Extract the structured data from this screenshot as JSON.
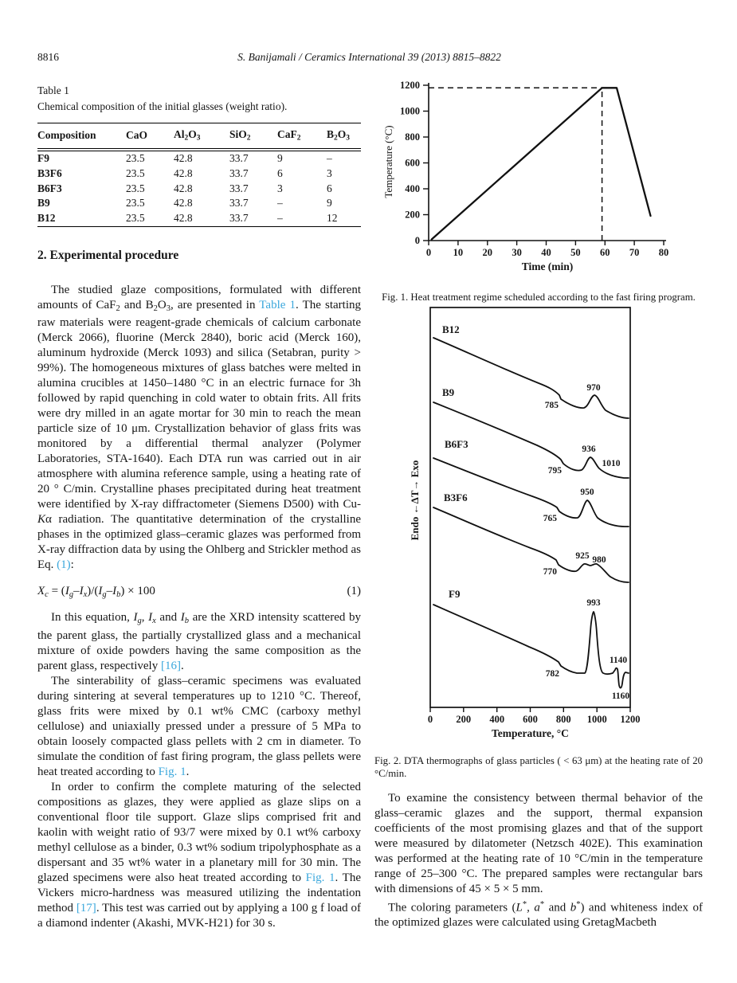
{
  "page": {
    "number": "8816",
    "running_head": "S. Banijamali / Ceramics International 39 (2013) 8815–8822"
  },
  "table1": {
    "label": "Table 1",
    "caption": "Chemical composition of the initial glasses (weight ratio).",
    "headers": [
      [
        {
          "t": "Composition"
        }
      ],
      [
        {
          "t": "CaO"
        }
      ],
      [
        {
          "t": "Al"
        },
        {
          "t": "2",
          "s": true
        },
        {
          "t": "O"
        },
        {
          "t": "3",
          "s": true
        }
      ],
      [
        {
          "t": "SiO"
        },
        {
          "t": "2",
          "s": true
        }
      ],
      [
        {
          "t": "CaF"
        },
        {
          "t": "2",
          "s": true
        }
      ],
      [
        {
          "t": "B"
        },
        {
          "t": "2",
          "s": true
        },
        {
          "t": "O"
        },
        {
          "t": "3",
          "s": true
        }
      ]
    ],
    "rows": [
      [
        "F9",
        "23.5",
        "42.8",
        "33.7",
        "9",
        "–"
      ],
      [
        "B3F6",
        "23.5",
        "42.8",
        "33.7",
        "6",
        "3"
      ],
      [
        "B6F3",
        "23.5",
        "42.8",
        "33.7",
        "3",
        "6"
      ],
      [
        "B9",
        "23.5",
        "42.8",
        "33.7",
        "–",
        "9"
      ],
      [
        "B12",
        "23.5",
        "42.8",
        "33.7",
        "–",
        "12"
      ]
    ]
  },
  "section": {
    "heading": "2. Experimental procedure"
  },
  "paragraphs": {
    "p1": [
      {
        "t": "The studied glaze compositions, formulated with different amounts of CaF"
      },
      {
        "t": "2",
        "s": true
      },
      {
        "t": " and B"
      },
      {
        "t": "2",
        "s": true
      },
      {
        "t": "O"
      },
      {
        "t": "3",
        "s": true
      },
      {
        "t": ", are presented in "
      },
      {
        "t": "Table 1",
        "l": true
      },
      {
        "t": ". The starting raw materials were reagent-grade chemicals of calcium carbonate (Merck 2066), fluorine (Merck 2840), boric acid (Merck 160), aluminum hydroxide (Merck 1093) and silica (Setabran, purity > 99%). The homogeneous mixtures of glass batches were melted in alumina crucibles at 1450–1480 °C in an electric furnace for 3h followed by rapid quenching in cold water to obtain frits. All frits were dry milled in an agate mortar for 30 min to reach the mean particle size of 10 μm. Crystallization behavior of glass frits was monitored by a differential thermal analyzer (Polymer Laboratories, STA-1640). Each DTA run was carried out in air atmosphere with alumina reference sample, using a heating rate of 20 ° C/min. Crystalline phases precipitated during heat treatment were identified by X-ray diffractometer (Siemens D500) with Cu-"
      },
      {
        "t": "K",
        "i": true
      },
      {
        "t": "α radiation. The quantitative determination of the crystalline phases in the optimized glass–ceramic glazes was performed from X-ray diffraction data by using the Ohlberg and Strickler method as Eq. "
      },
      {
        "t": "(1)",
        "l": true
      },
      {
        "t": ":"
      }
    ],
    "equation": {
      "body": [
        {
          "t": "X",
          "i": true
        },
        {
          "t": "c",
          "i": true,
          "s": true
        },
        {
          "t": " = ("
        },
        {
          "t": "I",
          "i": true
        },
        {
          "t": "g",
          "i": true,
          "s": true
        },
        {
          "t": "–"
        },
        {
          "t": "I",
          "i": true
        },
        {
          "t": "x",
          "i": true,
          "s": true
        },
        {
          "t": ")/("
        },
        {
          "t": "I",
          "i": true
        },
        {
          "t": "g",
          "i": true,
          "s": true
        },
        {
          "t": "–"
        },
        {
          "t": "I",
          "i": true
        },
        {
          "t": "b",
          "i": true,
          "s": true
        },
        {
          "t": ") × 100"
        }
      ],
      "number": "(1)"
    },
    "p2": [
      {
        "t": "In this equation, "
      },
      {
        "t": "I",
        "i": true
      },
      {
        "t": "g",
        "i": true,
        "s": true
      },
      {
        "t": ", "
      },
      {
        "t": "I",
        "i": true
      },
      {
        "t": "x",
        "i": true,
        "s": true
      },
      {
        "t": " and "
      },
      {
        "t": "I",
        "i": true
      },
      {
        "t": "b",
        "i": true,
        "s": true
      },
      {
        "t": " are the XRD intensity scattered by the parent glass, the partially crystallized glass and a mechanical mixture of oxide powders having the same composition as the parent glass, respectively "
      },
      {
        "t": "[16]",
        "l": true
      },
      {
        "t": "."
      }
    ],
    "p3": [
      {
        "t": "The sinterability of glass–ceramic specimens was evaluated during sintering at several temperatures up to 1210 °C. Thereof, glass frits were mixed by 0.1 wt% CMC (carboxy methyl cellulose) and uniaxially pressed under a pressure of 5 MPa to obtain loosely compacted glass pellets with 2 cm in diameter. To simulate the condition of fast firing program, the glass pellets were heat treated according to "
      },
      {
        "t": "Fig. 1",
        "l": true
      },
      {
        "t": "."
      }
    ],
    "p4": [
      {
        "t": "In order to confirm the complete maturing of the selected compositions as glazes, they were applied as glaze slips on a conventional floor tile support. Glaze slips comprised frit and kaolin with weight ratio of 93/7 were mixed by 0.1 wt% carboxy methyl cellulose as a binder, 0.3 wt% sodium tripolyphosphate as a dispersant and 35 wt% water in a planetary mill for 30 min. The glazed specimens were also heat treated according to "
      },
      {
        "t": "Fig. 1",
        "l": true
      },
      {
        "t": ". The Vickers micro-hardness was measured utilizing the indentation method "
      },
      {
        "t": "[17]",
        "l": true
      },
      {
        "t": ". This test was carried out by applying a 100 g f load of a diamond indenter (Akashi, MVK-H21) for 30 s."
      }
    ],
    "p5": [
      {
        "t": "To examine the consistency between thermal behavior of the glass–ceramic glazes and the support, thermal expansion coefficients of the most promising glazes and that of the support were measured by dilatometer (Netzsch 402E). This examination was performed at the heating rate of 10 °C/min in the temperature range of 25–300 °C. The prepared samples were rectangular bars with dimensions of 45 × 5 × 5 mm."
      }
    ],
    "p6": [
      {
        "t": "The coloring parameters ("
      },
      {
        "t": "L",
        "i": true
      },
      {
        "t": "*",
        "p": true
      },
      {
        "t": ", "
      },
      {
        "t": "a",
        "i": true
      },
      {
        "t": "*",
        "p": true
      },
      {
        "t": " and "
      },
      {
        "t": "b",
        "i": true
      },
      {
        "t": "*",
        "p": true
      },
      {
        "t": ") and whiteness index of the optimized glazes were calculated using GretagMacbeth"
      }
    ]
  },
  "fig1": {
    "caption": "Fig. 1. Heat treatment regime scheduled according to the fast firing program.",
    "xlabel": "Time (min)",
    "ylabel": "Temperature (°C)",
    "xticks": [
      "0",
      "10",
      "20",
      "30",
      "40",
      "50",
      "60",
      "70",
      "80"
    ],
    "yticks": [
      "0",
      "200",
      "400",
      "600",
      "800",
      "1000",
      "1200"
    ]
  },
  "fig2": {
    "caption": "Fig. 2. DTA thermographs of glass particles ( < 63 μm) at the heating rate of 20 °C/min.",
    "xlabel": "Temperature, °C",
    "ylabel": "Endo ←ΔT→ Exo",
    "xticks": [
      "0",
      "200",
      "400",
      "600",
      "800",
      "1000",
      "1200"
    ],
    "curves": [
      {
        "label": "B12",
        "annotations": [
          "785",
          "970"
        ]
      },
      {
        "label": "B9",
        "annotations": [
          "795",
          "936",
          "1010"
        ]
      },
      {
        "label": "B6F3",
        "annotations": [
          "765",
          "950"
        ]
      },
      {
        "label": "B3F6",
        "annotations": [
          "770",
          "925",
          "980"
        ]
      },
      {
        "label": "F9",
        "annotations": [
          "782",
          "993",
          "1140",
          "1160"
        ]
      }
    ]
  },
  "chart_data": [
    {
      "id": "fig1",
      "type": "line",
      "title": "Heat treatment regime (fast firing program)",
      "xlabel": "Time (min)",
      "ylabel": "Temperature (°C)",
      "xlim": [
        0,
        80
      ],
      "ylim": [
        0,
        1200
      ],
      "xticks": [
        0,
        10,
        20,
        30,
        40,
        50,
        60,
        70,
        80
      ],
      "yticks": [
        0,
        200,
        400,
        600,
        800,
        1000,
        1200
      ],
      "grid": false,
      "legend": false,
      "series": [
        {
          "name": "heat treatment profile",
          "points": [
            [
              1,
              20
            ],
            [
              59,
              1180
            ],
            [
              64,
              1180
            ],
            [
              75,
              200
            ]
          ]
        }
      ],
      "annotations": {
        "dashed_horizontal_y": 1180,
        "dashed_vertical_x": 59
      }
    },
    {
      "id": "fig2",
      "type": "line",
      "title": "DTA thermographs of glass particles",
      "xlabel": "Temperature, °C",
      "ylabel": "Endo ←ΔT→ Exo",
      "xlim": [
        0,
        1200
      ],
      "xticks": [
        0,
        200,
        400,
        600,
        800,
        1000,
        1200
      ],
      "grid": false,
      "legend": false,
      "note": "Five vertically offset DTA curves; labeled temperatures in °C",
      "series": [
        {
          "name": "B12",
          "labeled_temperatures": [
            785,
            970
          ]
        },
        {
          "name": "B9",
          "labeled_temperatures": [
            795,
            936,
            1010
          ]
        },
        {
          "name": "B6F3",
          "labeled_temperatures": [
            765,
            950
          ]
        },
        {
          "name": "B3F6",
          "labeled_temperatures": [
            770,
            925,
            980
          ]
        },
        {
          "name": "F9",
          "labeled_temperatures": [
            782,
            993,
            1140,
            1160
          ]
        }
      ]
    }
  ]
}
